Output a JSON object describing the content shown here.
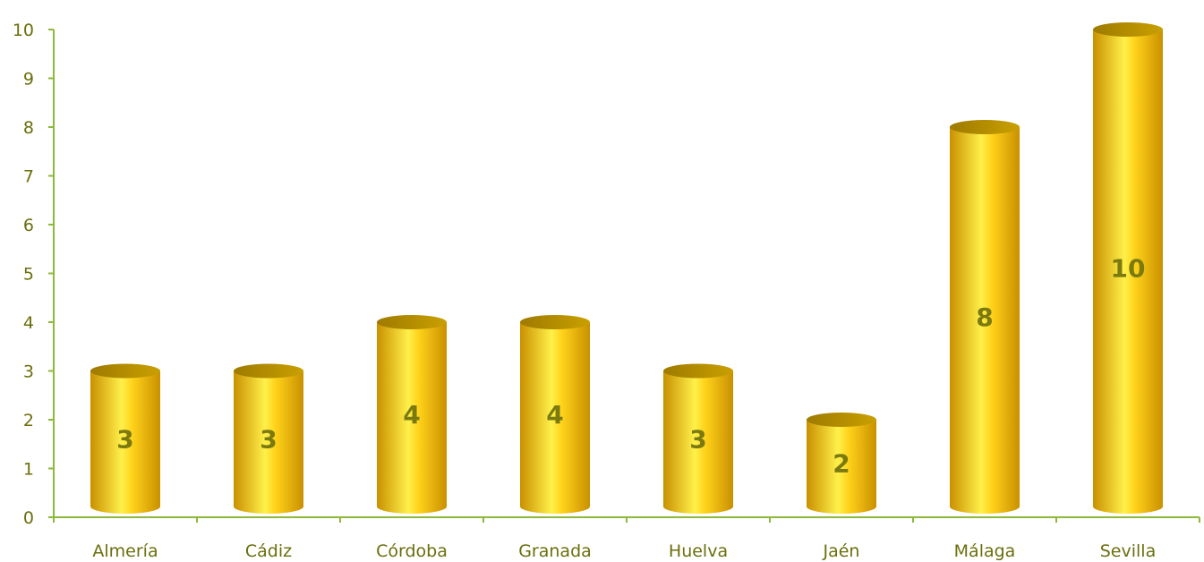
{
  "chart_data": {
    "type": "bar",
    "categories": [
      "Almería",
      "Cádiz",
      "Córdoba",
      "Granada",
      "Huelva",
      "Jaén",
      "Málaga",
      "Sevilla"
    ],
    "values": [
      3,
      3,
      4,
      4,
      3,
      2,
      8,
      10
    ],
    "data_labels": [
      "3",
      "3",
      "4",
      "4",
      "3",
      "2",
      "8",
      "10"
    ],
    "yticks": [
      "0",
      "1",
      "2",
      "3",
      "4",
      "5",
      "6",
      "7",
      "8",
      "9",
      "10"
    ],
    "ylim": [
      0,
      10
    ],
    "grid": false,
    "legend": "none",
    "bar_style": "3d-cylinder",
    "colors": {
      "bar_light": "#fff04a",
      "bar_mid": "#ffd21a",
      "bar_dark": "#c99000",
      "bar_top": "#9e7a00",
      "axis": "#8db83a",
      "text": "#6b6f0c",
      "data_label": "#7a7a10"
    }
  }
}
